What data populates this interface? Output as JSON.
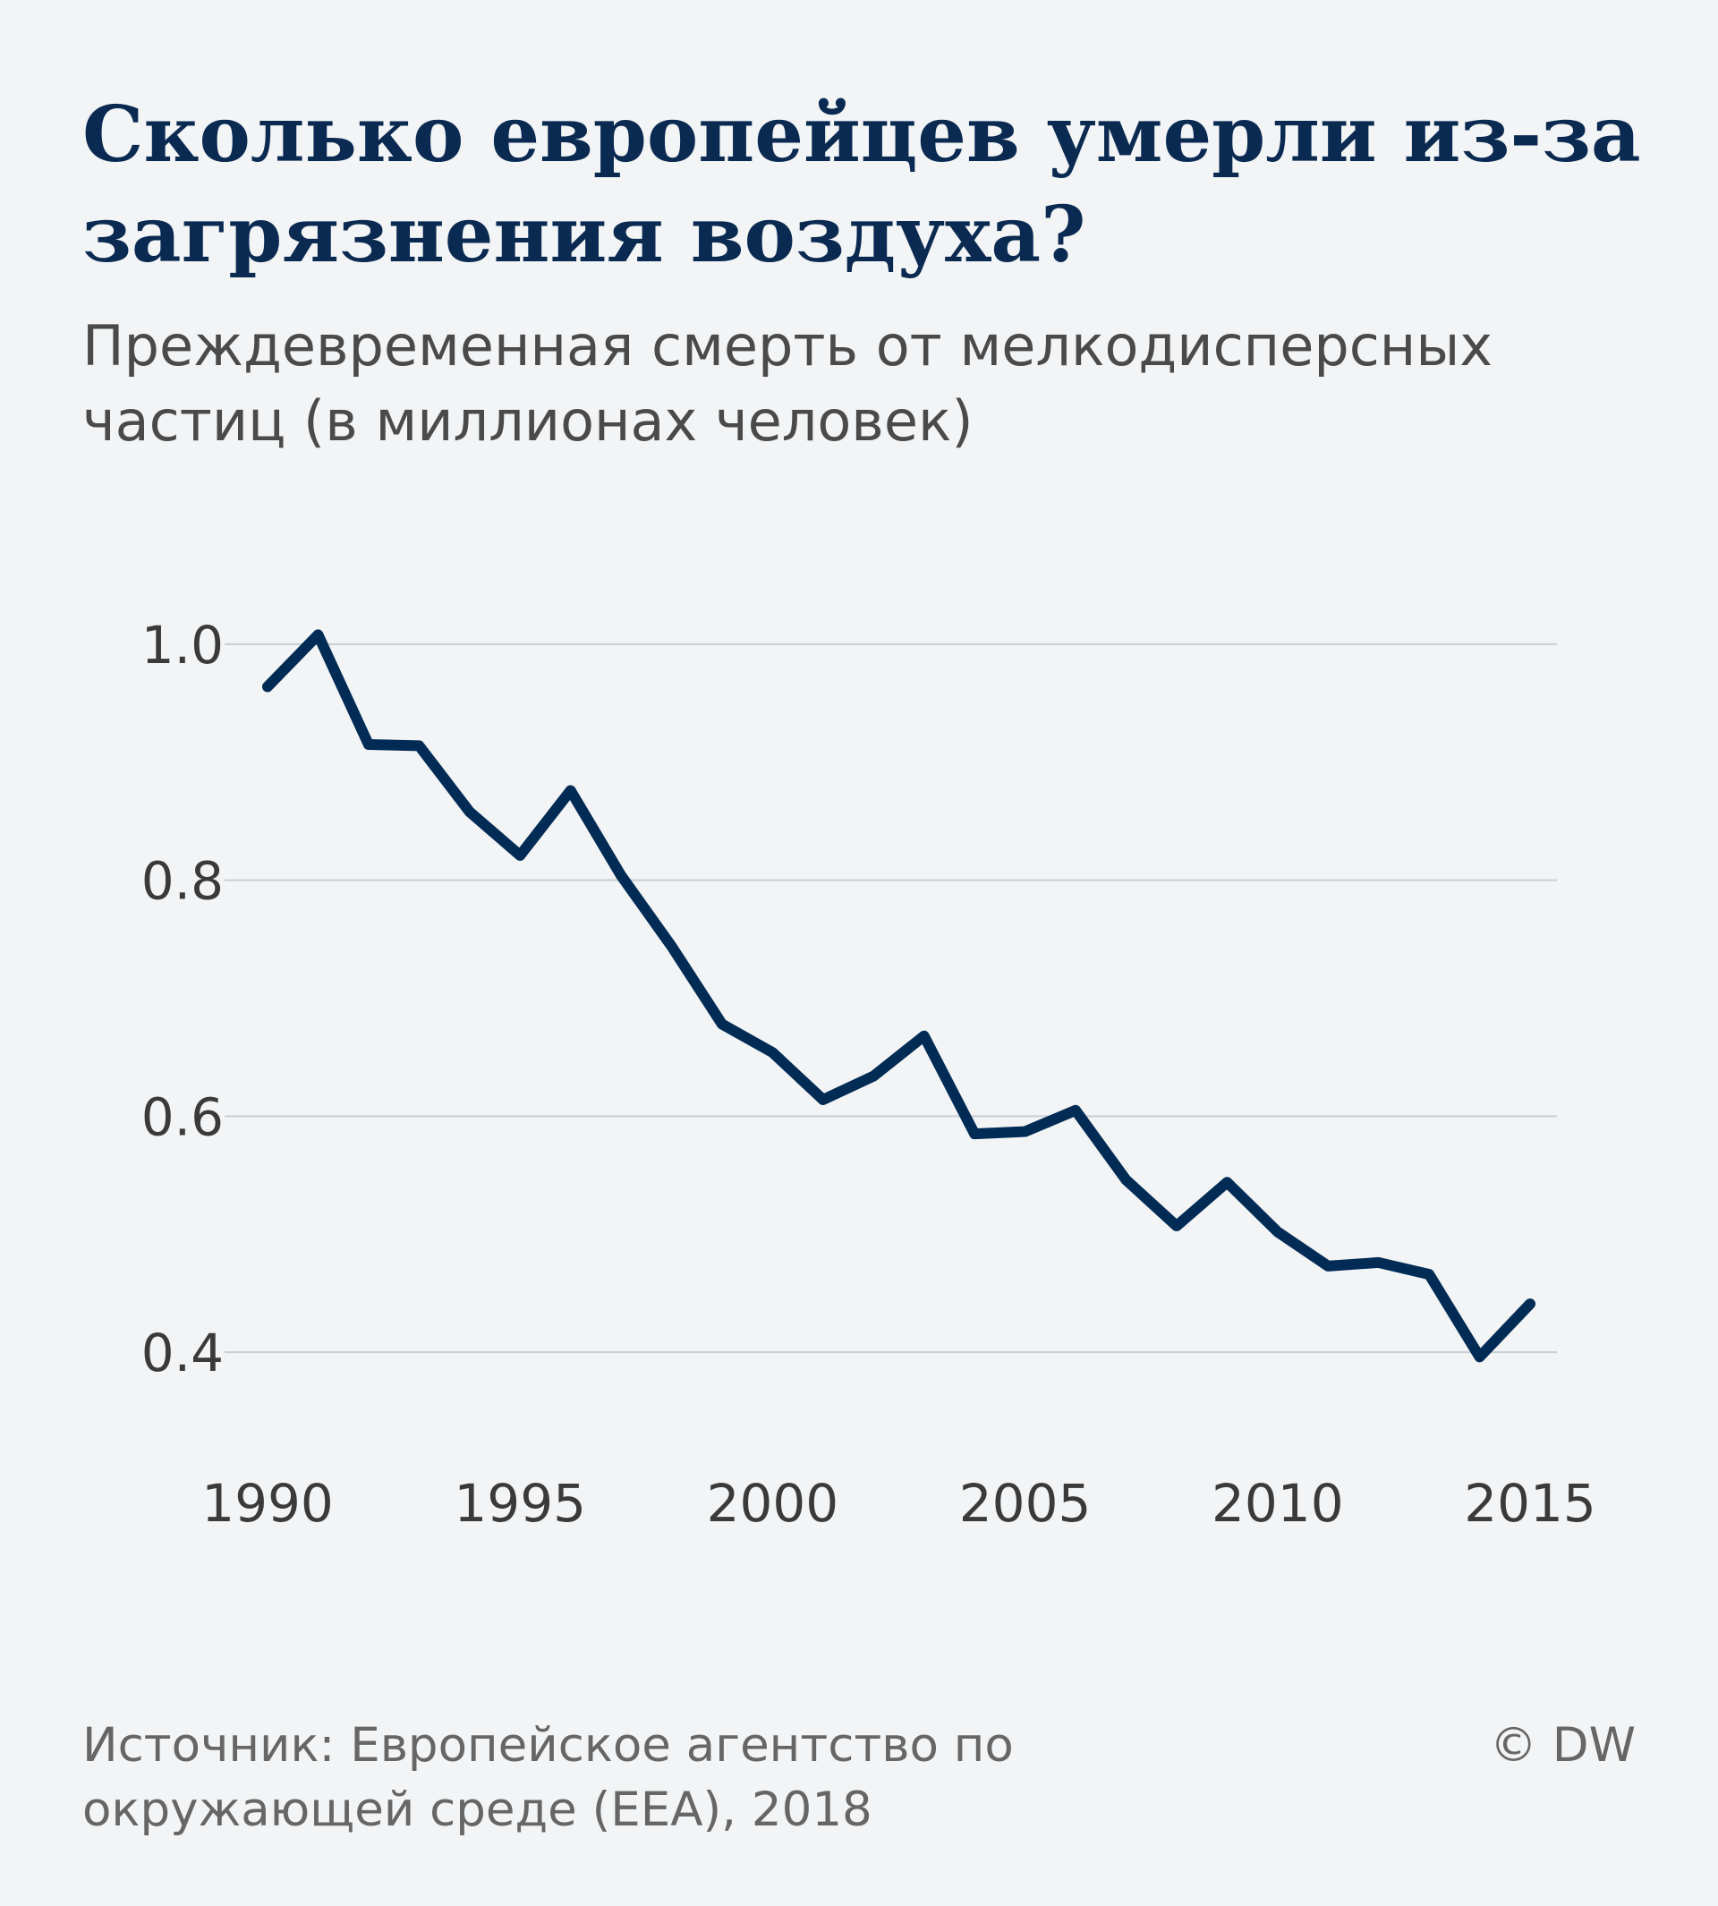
{
  "chart_data": {
    "type": "line",
    "title": [
      "Сколько европейцев умерли из-за",
      "загрязнения воздуха?"
    ],
    "subtitle": [
      "Преждевременная смерть от мелкодисперсных",
      "частиц (в миллионах человек)"
    ],
    "source": [
      "Источник: Европейское агентство по",
      "окружающей среде (EEA), 2018"
    ],
    "credit": "© DW",
    "x": [
      1990,
      1991,
      1992,
      1993,
      1994,
      1995,
      1996,
      1997,
      1998,
      1999,
      2000,
      2001,
      2002,
      2003,
      2004,
      2005,
      2006,
      2007,
      2008,
      2009,
      2010,
      2011,
      2012,
      2013,
      2014,
      2015
    ],
    "series": [
      {
        "name": "Преждевременная смерть",
        "color": "#002b55",
        "values": [
          0.964,
          1.008,
          0.915,
          0.914,
          0.858,
          0.821,
          0.876,
          0.804,
          0.744,
          0.678,
          0.654,
          0.614,
          0.634,
          0.668,
          0.585,
          0.587,
          0.605,
          0.546,
          0.507,
          0.544,
          0.502,
          0.473,
          0.476,
          0.466,
          0.396,
          0.441
        ]
      }
    ],
    "xlim": [
      1990,
      2015
    ],
    "xticks": [
      1990,
      1995,
      2000,
      2005,
      2010,
      2015
    ],
    "ylim": [
      0.3,
      1.05
    ],
    "yticks": [
      {
        "value": 0.4,
        "label": "0.4"
      },
      {
        "value": 0.6,
        "label": "0.6"
      },
      {
        "value": 0.8,
        "label": "0.8"
      },
      {
        "value": 1.0,
        "label": "1.0"
      }
    ],
    "grid": true
  }
}
